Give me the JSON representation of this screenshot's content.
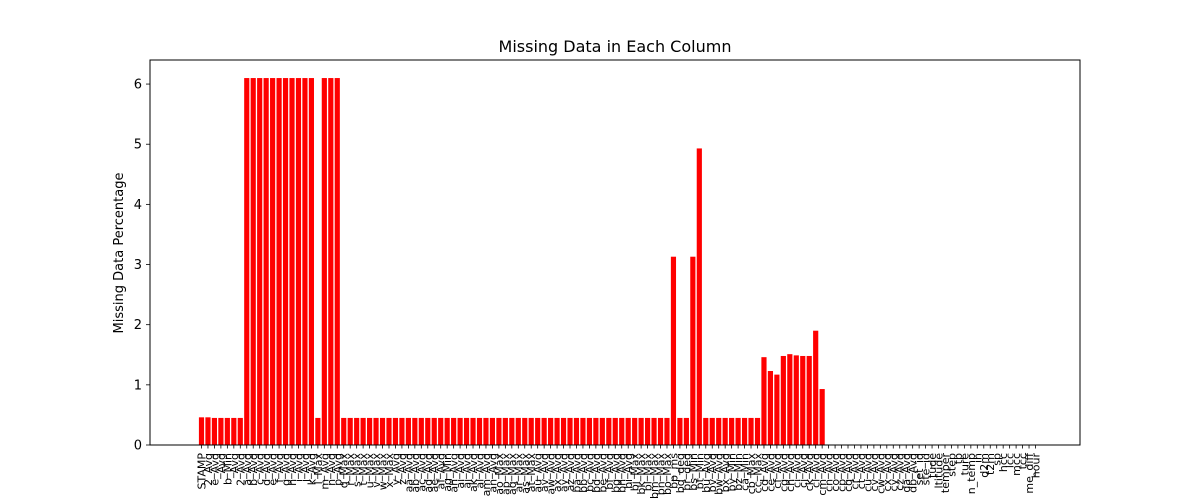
{
  "chart_data": {
    "type": "bar",
    "title": "Missing Data in Each Column",
    "xlabel": "",
    "ylabel": "Missing Data Percentage",
    "ylim": [
      0,
      6.4
    ],
    "yticks": [
      0,
      1,
      2,
      3,
      4,
      5,
      6
    ],
    "grid": false,
    "bar_color": "#ff0000",
    "categories": [
      "STAMP",
      "2_Avg",
      "e_Avg",
      "_Avg",
      "b_Min",
      "_Avg",
      "2_Avg",
      "a_Avg",
      "b_Avg",
      "c_Avg",
      "d_Avg",
      "e_Avg",
      "f_Avg",
      "g_Avg",
      "h_Avg",
      "i_Avg",
      "j_Avg",
      "k_Avg",
      "l_Max",
      "m_Avg",
      "n_Avg",
      "p_Avg",
      "q_Max",
      "r_Max",
      "s_Max",
      "t_Max",
      "u_Max",
      "v_Max",
      "w_Max",
      "x_Max",
      "y_Avg",
      "z_Avg",
      "aa_Avg",
      "ab_Avg",
      "ac_Avg",
      "ad_Avg",
      "ae_Avg",
      "af_Avg",
      "ag_Min",
      "ah_Avg",
      "ai_Avg",
      "aj_Avg",
      "ak_Avg",
      "al_Avg",
      "am_Avg",
      "an_Avg",
      "ao_Max",
      "ap_Max",
      "aq_Max",
      "ar_Max",
      "as_Max",
      "at_Max",
      "au_Avg",
      "av_Avg",
      "aw_Avg",
      "ax_Avg",
      "ay_Avg",
      "az_Avg",
      "ba_Avg",
      "bb_Avg",
      "bc_Avg",
      "bd_Avg",
      "be_Avg",
      "bf_Avg",
      "bg_Avg",
      "bh_Avg",
      "bi_Avg",
      "bj_Max",
      "bk_Max",
      "bl_Max",
      "bm_Max",
      "bn_Max",
      "bo_Max",
      "bp_ms",
      "bq_deg",
      "br_deg",
      "bs_Min",
      "bt_Min",
      "bu_Avg",
      "bv_Avg",
      "bw_Avg",
      "bx_Avg",
      "by_Min",
      "bz_Min",
      "ca_Min",
      "cb_Max",
      "cc_Max",
      "cd_Avg",
      "ce_Avg",
      "cf_Avg",
      "cg_Avg",
      "ch_Avg",
      "ci_Avg",
      "cj_Avg",
      "ck_Avg",
      "cl_Avg",
      "cm_Avg",
      "cn_Avg",
      "co_Avg",
      "cp_Avg",
      "cq_Avg",
      "cr_Avg",
      "ct_Avg",
      "cu_Avg",
      "cv_Avg",
      "cw_Avg",
      "cx_Avg",
      "cy_Avg",
      "cz_Avg",
      "da_Avg",
      "db_Avg",
      "set_id",
      "ste_id",
      "tude",
      "ltitude",
      "temper",
      "step",
      "tp",
      "ture",
      "n_temp",
      "in",
      "d2m",
      "t2m",
      "sp",
      "hcc",
      "lcc",
      "mcc",
      "tcc",
      "me_diff",
      "hour"
    ],
    "values": [
      0.46,
      0.46,
      0.45,
      0.45,
      0.45,
      0.45,
      0.45,
      6.1,
      6.1,
      6.1,
      6.1,
      6.1,
      6.1,
      6.1,
      6.1,
      6.1,
      6.1,
      6.1,
      0.45,
      6.1,
      6.1,
      6.1,
      0.45,
      0.45,
      0.45,
      0.45,
      0.45,
      0.45,
      0.45,
      0.45,
      0.45,
      0.45,
      0.45,
      0.45,
      0.45,
      0.45,
      0.45,
      0.45,
      0.45,
      0.45,
      0.45,
      0.45,
      0.45,
      0.45,
      0.45,
      0.45,
      0.45,
      0.45,
      0.45,
      0.45,
      0.45,
      0.45,
      0.45,
      0.45,
      0.45,
      0.45,
      0.45,
      0.45,
      0.45,
      0.45,
      0.45,
      0.45,
      0.45,
      0.45,
      0.45,
      0.45,
      0.45,
      0.45,
      0.45,
      0.45,
      0.45,
      0.45,
      0.45,
      3.13,
      0.45,
      0.45,
      3.13,
      4.93,
      0.45,
      0.45,
      0.45,
      0.45,
      0.45,
      0.45,
      0.45,
      0.45,
      0.45,
      1.46,
      1.23,
      1.17,
      1.48,
      1.51,
      1.49,
      1.48,
      1.48,
      1.9,
      0.93,
      0,
      0,
      0,
      0,
      0,
      0,
      0,
      0,
      0,
      0,
      0,
      0,
      0,
      0,
      0,
      0,
      0,
      0,
      0,
      0,
      0,
      0,
      0,
      0,
      0,
      0,
      0,
      0,
      0,
      0,
      0,
      0,
      0
    ]
  }
}
